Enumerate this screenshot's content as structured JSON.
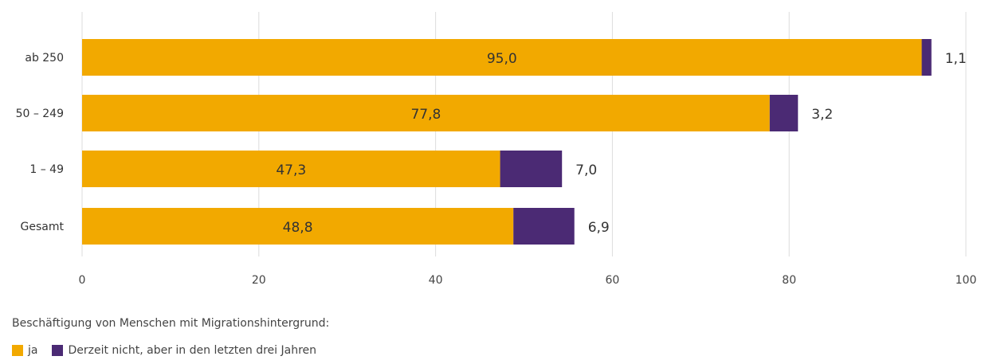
{
  "chart_data": {
    "type": "bar",
    "orientation": "horizontal",
    "stacked": true,
    "title": "",
    "xlabel": "",
    "ylabel": "",
    "categories": [
      "ab 250",
      "50 – 249",
      "1 – 49",
      "Gesamt"
    ],
    "series": [
      {
        "name": "ja",
        "color": "#F2A900",
        "values": [
          95.0,
          77.8,
          47.3,
          48.8
        ],
        "labels": [
          "95,0",
          "77,8",
          "47,3",
          "48,8"
        ]
      },
      {
        "name": "Derzeit nicht, aber in den letzten drei Jahren",
        "color": "#4B2A74",
        "values": [
          1.1,
          3.2,
          7.0,
          6.9
        ],
        "labels": [
          "1,1",
          "3,2",
          "7,0",
          "6,9"
        ]
      }
    ],
    "xlim": [
      0,
      100
    ],
    "xticks": [
      0,
      20,
      40,
      60,
      80,
      100
    ],
    "xtick_labels": [
      "0",
      "20",
      "40",
      "60",
      "80",
      "100"
    ],
    "grid": "vertical",
    "legend_position": "bottom-left",
    "legend_title": "Beschäftigung von Menschen mit Migrationshintergrund:"
  }
}
